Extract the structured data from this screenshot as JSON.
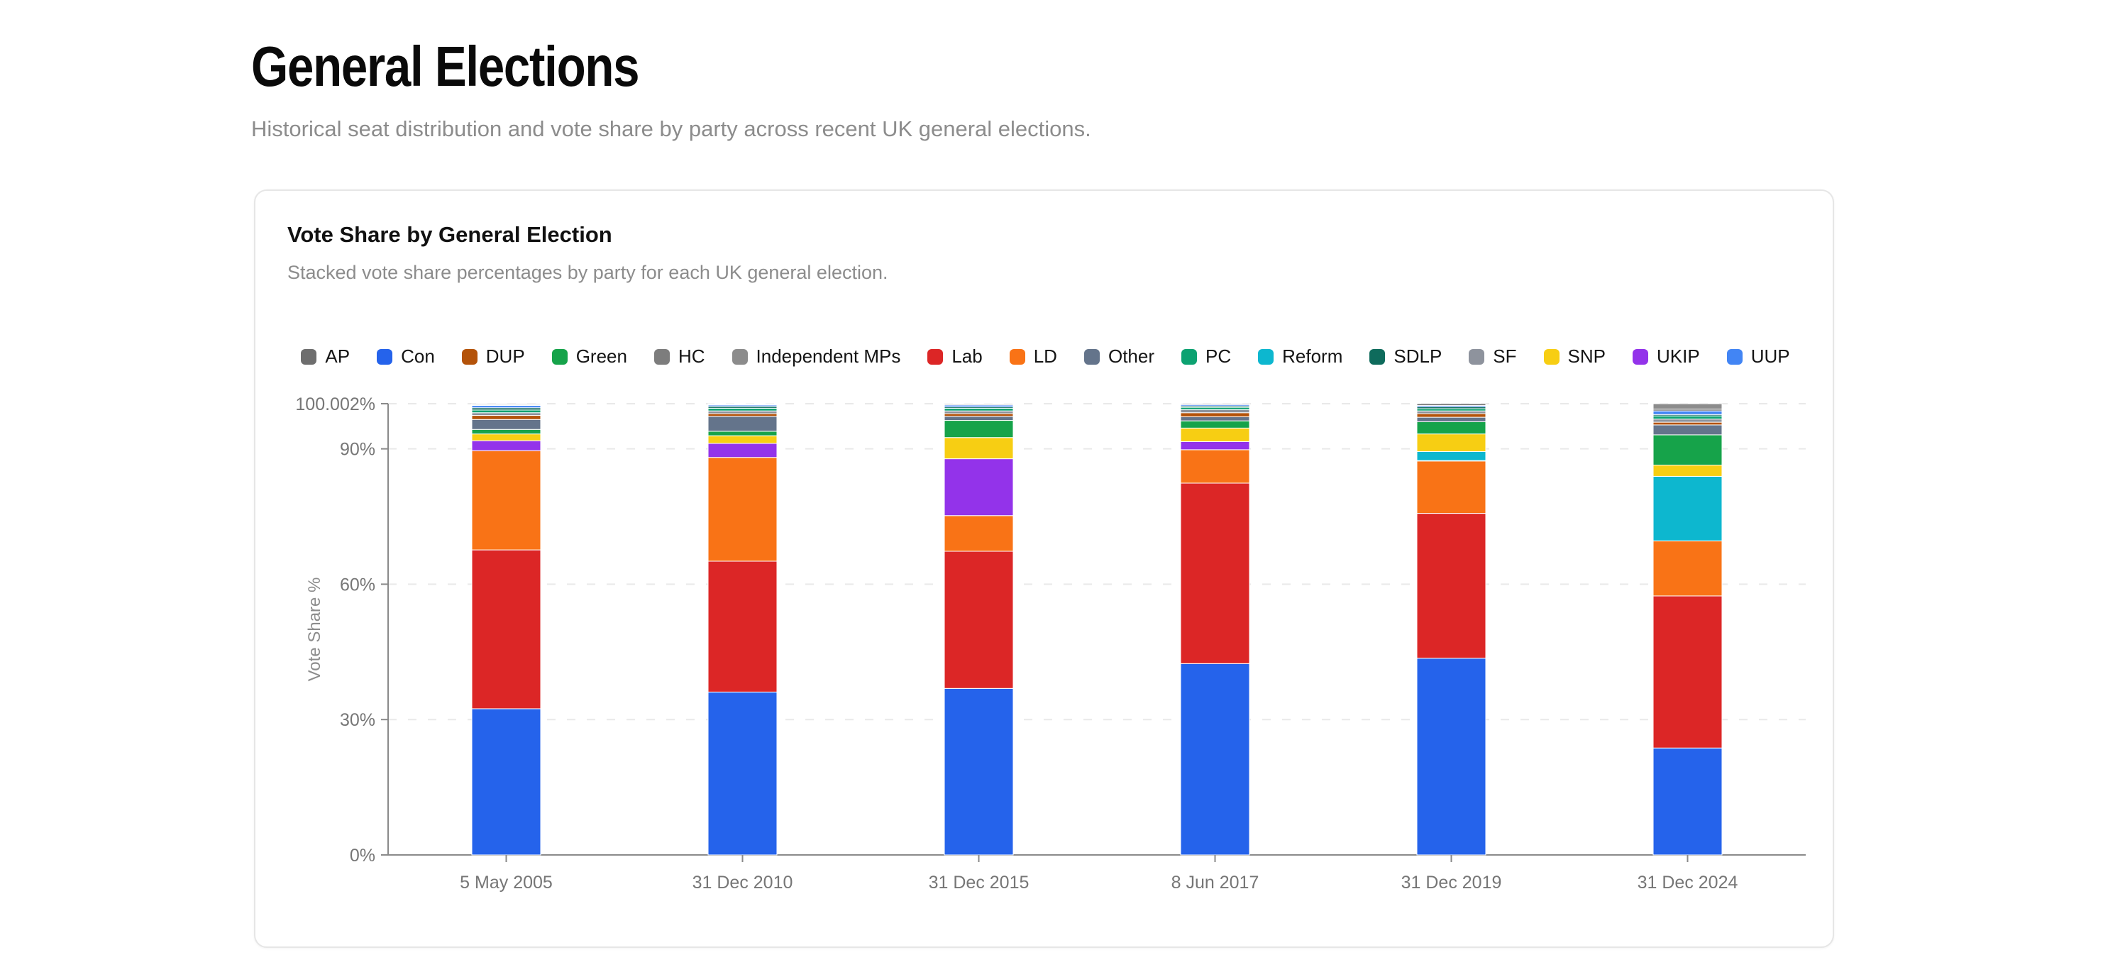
{
  "page": {
    "title": "General Elections",
    "subtitle": "Historical seat distribution and vote share by party across recent UK general elections."
  },
  "card": {
    "title": "Vote Share by General Election",
    "subtitle": "Stacked vote share percentages by party for each UK general election."
  },
  "chart_data": {
    "type": "bar",
    "stacked": true,
    "title": "Vote Share by General Election",
    "xlabel": "",
    "ylabel": "Vote Share %",
    "ylim": [
      0,
      100.002
    ],
    "grid": "dashed-horizontal",
    "legend_position": "top",
    "categories": [
      "5 May 2005",
      "31 Dec 2010",
      "31 Dec 2015",
      "8 Jun 2017",
      "31 Dec 2019",
      "31 Dec 2024"
    ],
    "y_ticks": [
      {
        "label": "0%",
        "value": 0
      },
      {
        "label": "30%",
        "value": 30
      },
      {
        "label": "60%",
        "value": 60
      },
      {
        "label": "90%",
        "value": 90
      },
      {
        "label": "100.002%",
        "value": 100.002
      }
    ],
    "legend_order": [
      "AP",
      "Con",
      "DUP",
      "Green",
      "HC",
      "Independent MPs",
      "Lab",
      "LD",
      "Other",
      "PC",
      "Reform",
      "SDLP",
      "SF",
      "SNP",
      "UKIP",
      "UUP"
    ],
    "series": [
      {
        "name": "Con",
        "color": "#2563eb",
        "values": [
          32.4,
          36.1,
          36.9,
          42.4,
          43.6,
          23.7
        ]
      },
      {
        "name": "Lab",
        "color": "#dc2626",
        "values": [
          35.2,
          29.0,
          30.4,
          40.0,
          32.1,
          33.7
        ]
      },
      {
        "name": "LD",
        "color": "#f97316",
        "values": [
          22.0,
          23.0,
          7.9,
          7.4,
          11.6,
          12.2
        ]
      },
      {
        "name": "UKIP",
        "color": "#9333ea",
        "values": [
          2.2,
          3.1,
          12.6,
          1.8,
          0.1,
          0
        ]
      },
      {
        "name": "Reform",
        "color": "#0db7cf",
        "values": [
          0,
          0,
          0,
          0,
          2.0,
          14.3
        ]
      },
      {
        "name": "SNP",
        "color": "#f7ce13",
        "values": [
          1.5,
          1.7,
          4.7,
          3.0,
          3.9,
          2.5
        ]
      },
      {
        "name": "Green",
        "color": "#16a34a",
        "values": [
          1.0,
          1.0,
          3.8,
          1.6,
          2.7,
          6.7
        ]
      },
      {
        "name": "Other",
        "color": "#64748b",
        "values": [
          2.2,
          3.3,
          0.9,
          0.9,
          1.0,
          2.2
        ]
      },
      {
        "name": "DUP",
        "color": "#b4530a",
        "values": [
          0.9,
          0.6,
          0.6,
          0.9,
          0.8,
          0.6
        ]
      },
      {
        "name": "SF",
        "color": "#8e939d",
        "values": [
          0.6,
          0.6,
          0.6,
          0.7,
          0.6,
          0.7
        ]
      },
      {
        "name": "PC",
        "color": "#0da271",
        "values": [
          0.6,
          0.6,
          0.6,
          0.5,
          0.5,
          0.7
        ]
      },
      {
        "name": "SDLP",
        "color": "#0e6b5c",
        "values": [
          0.5,
          0.4,
          0.3,
          0.3,
          0.4,
          0.3
        ]
      },
      {
        "name": "UUP",
        "color": "#4285f4",
        "values": [
          0.5,
          0.3,
          0.4,
          0.3,
          0.3,
          0.8
        ]
      },
      {
        "name": "AP",
        "color": "#6e6e6e",
        "values": [
          0.1,
          0.1,
          0.2,
          0.2,
          0.4,
          0.4
        ]
      },
      {
        "name": "HC",
        "color": "#7d7d7d",
        "values": [
          0.1,
          0.1,
          0,
          0,
          0,
          0
        ]
      },
      {
        "name": "Independent MPs",
        "color": "#8c8c8c",
        "values": [
          0.2,
          0.1,
          0.1,
          0,
          0,
          1.2
        ]
      }
    ],
    "style": {
      "axis_color": "#8a8a8a",
      "grid_color": "#e9e9e9",
      "tick_label_color": "#767676",
      "axis_title_color": "#8c8c8c",
      "segment_separator": "#ffffff"
    }
  }
}
